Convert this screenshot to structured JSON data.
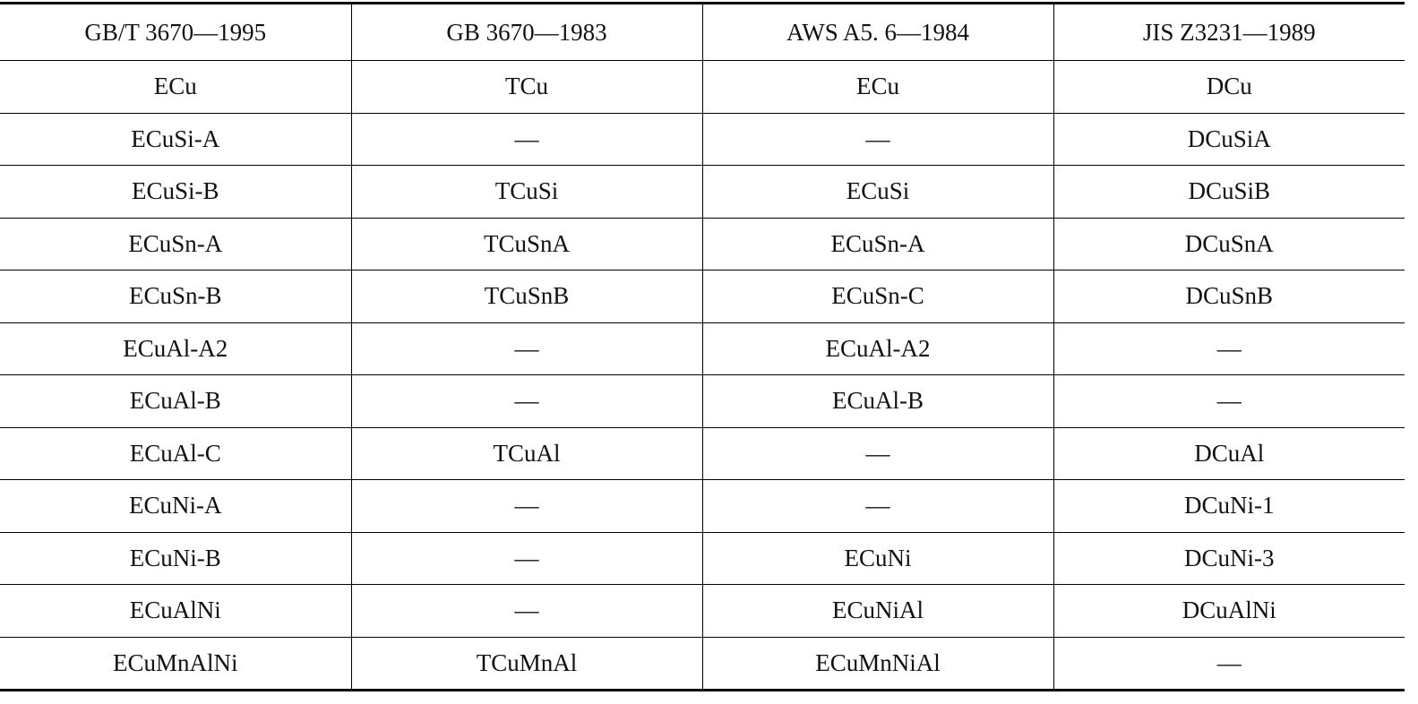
{
  "table": {
    "header": [
      "GB/T 3670—1995",
      "GB 3670—1983",
      "AWS A5. 6—1984",
      "JIS Z3231—1989"
    ],
    "rows": [
      [
        "ECu",
        "TCu",
        "ECu",
        "DCu"
      ],
      [
        "ECuSi-A",
        "—",
        "—",
        "DCuSiA"
      ],
      [
        "ECuSi-B",
        "TCuSi",
        "ECuSi",
        "DCuSiB"
      ],
      [
        "ECuSn-A",
        "TCuSnA",
        "ECuSn-A",
        "DCuSnA"
      ],
      [
        "ECuSn-B",
        "TCuSnB",
        "ECuSn-C",
        "DCuSnB"
      ],
      [
        "ECuAl-A2",
        "—",
        "ECuAl-A2",
        "—"
      ],
      [
        "ECuAl-B",
        "—",
        "ECuAl-B",
        "—"
      ],
      [
        "ECuAl-C",
        "TCuAl",
        "—",
        "DCuAl"
      ],
      [
        "ECuNi-A",
        "—",
        "—",
        "DCuNi-1"
      ],
      [
        "ECuNi-B",
        "—",
        "ECuNi",
        "DCuNi-3"
      ],
      [
        "ECuAlNi",
        "—",
        "ECuNiAl",
        "DCuAlNi"
      ],
      [
        "ECuMnAlNi",
        "TCuMnAl",
        "ECuMnNiAl",
        "—"
      ]
    ]
  }
}
